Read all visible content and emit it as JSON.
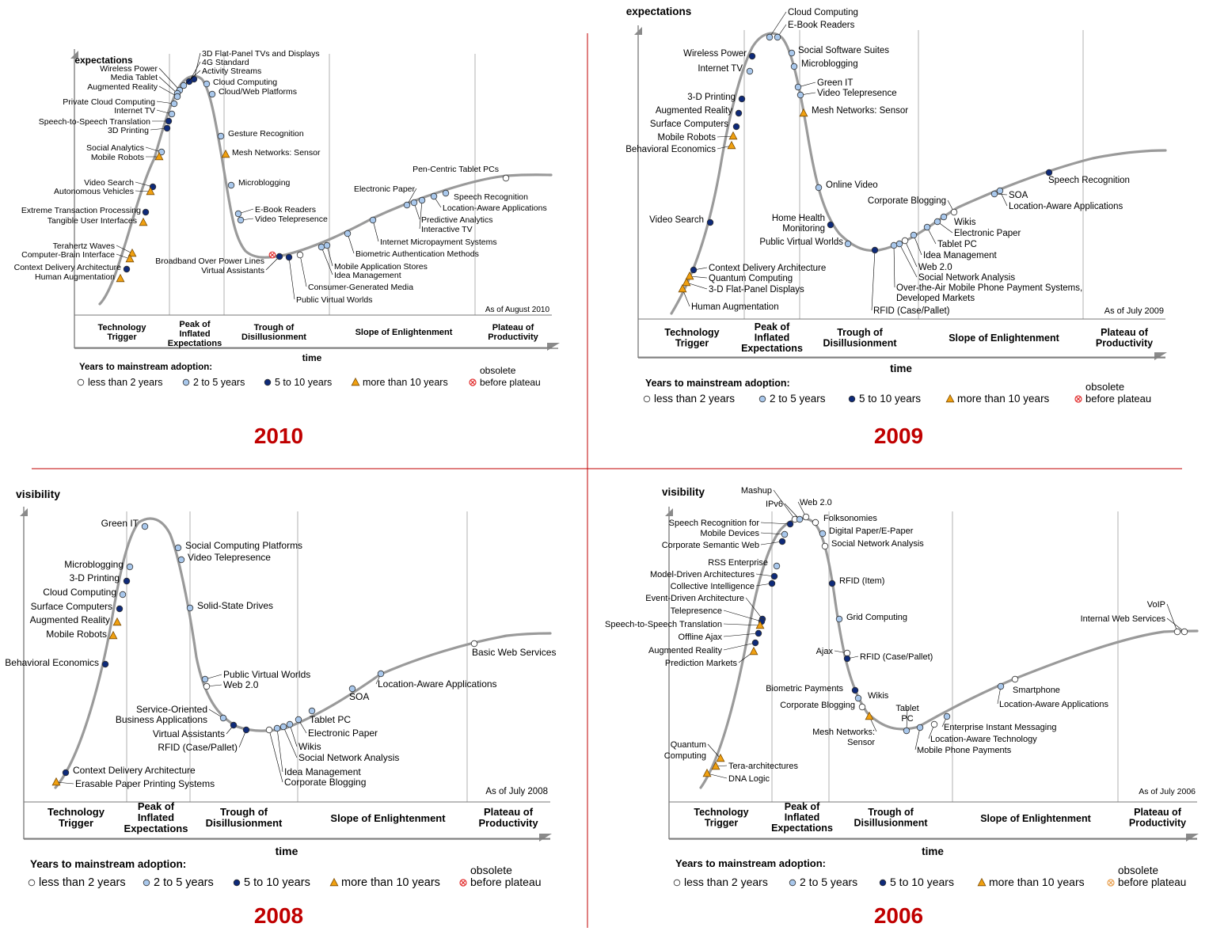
{
  "divider_color": "#c00000",
  "year_color": "#c00000",
  "marker_colors": {
    "lt2": "#ffffff",
    "2to5": "#a9c8ec",
    "5to10": "#0e2a79",
    "gt10": "#f0a010",
    "obsolete": "#e23030"
  },
  "legend_title": "Years to mainstream adoption:",
  "legend": {
    "lt2": "less than 2 years",
    "2to5": "2 to 5 years",
    "5to10": "5 to 10 years",
    "gt10": "more than 10 years",
    "obsolete_1": "obsolete",
    "obsolete_2": "before plateau"
  },
  "phases": [
    "Technology|Trigger",
    "Peak of|Inflated|Expectations",
    "Trough of|Disillusionment",
    "Slope of Enlightenment",
    "Plateau of|Productivity"
  ],
  "x_label": "time",
  "chart_data": [
    {
      "type": "scatter",
      "title": "2010",
      "ylabel": "expectations",
      "xlabel": "time",
      "note": "As of August 2010",
      "series": [
        {
          "name": "less than 2 years",
          "points": [
            "Pen-Centric Tablet PCs",
            "Public Virtual Worlds",
            "Consumer-Generated Media"
          ]
        },
        {
          "name": "2 to 5 years",
          "points": [
            "Wireless Power",
            "Media Tablet",
            "Augmented Reality",
            "Private Cloud Computing",
            "Internet TV",
            "Social Analytics",
            "Cloud Computing",
            "Cloud/Web Platforms",
            "Gesture Recognition",
            "Microblogging",
            "E-Book Readers",
            "Video Telepresence",
            "Mobile Application Stores",
            "Idea Management",
            "Biometric Authentication Methods",
            "Internet Micropayment Systems",
            "Electronic Paper",
            "Predictive Analytics",
            "Interactive TV",
            "Speech Recognition",
            "Location-Aware Applications"
          ]
        },
        {
          "name": "5 to 10 years",
          "points": [
            "3D Flat-Panel TVs and Displays",
            "4G Standard",
            "Activity Streams",
            "Speech-to-Speech Translation",
            "3D Printing",
            "Video Search",
            "Extreme Transaction Processing",
            "Context Delivery Architecture",
            "Broadband Over Power Lines",
            "Virtual Assistants"
          ]
        },
        {
          "name": "more than 10 years",
          "points": [
            "Mobile Robots",
            "Autonomous Vehicles",
            "Tangible User Interfaces",
            "Terahertz Waves",
            "Computer-Brain Interface",
            "Human Augmentation",
            "Mesh Networks: Sensor"
          ]
        },
        {
          "name": "obsolete before plateau",
          "points": [
            "Broadband Over Power Lines"
          ]
        }
      ]
    },
    {
      "type": "scatter",
      "title": "2009",
      "ylabel": "expectations",
      "xlabel": "time",
      "note": "As of July 2009",
      "series": [
        {
          "name": "less than 2 years",
          "points": [
            "Corporate Blogging",
            "Web 2.0"
          ]
        },
        {
          "name": "2 to 5 years",
          "points": [
            "Cloud Computing",
            "E-Book Readers",
            "Internet TV",
            "Social Software Suites",
            "Microblogging",
            "Green IT",
            "Video Telepresence",
            "Online Video",
            "Public Virtual Worlds",
            "Idea Management",
            "Social Network Analysis",
            "Over-the-Air Mobile Phone Payment Systems, Developed Markets",
            "Tablet PC",
            "Electronic Paper",
            "Wikis",
            "SOA",
            "Location-Aware Applications"
          ]
        },
        {
          "name": "5 to 10 years",
          "points": [
            "Wireless Power",
            "3-D Printing",
            "Augmented Reality",
            "Surface Computers",
            "Video Search",
            "Context Delivery Architecture",
            "Home Health Monitoring",
            "RFID (Case/Pallet)",
            "Speech Recognition"
          ]
        },
        {
          "name": "more than 10 years",
          "points": [
            "Mobile Robots",
            "Behavioral Economics",
            "Quantum Computing",
            "3-D Flat-Panel Displays",
            "Human Augmentation",
            "Mesh Networks: Sensor"
          ]
        }
      ]
    },
    {
      "type": "scatter",
      "title": "2008",
      "ylabel": "visibility",
      "xlabel": "time",
      "note": "As of July 2008",
      "series": [
        {
          "name": "less than 2 years",
          "points": [
            "Web 2.0",
            "Corporate Blogging",
            "Basic Web Services"
          ]
        },
        {
          "name": "2 to 5 years",
          "points": [
            "Green IT",
            "Microblogging",
            "Cloud Computing",
            "Social Computing Platforms",
            "Video Telepresence",
            "Solid-State Drives",
            "Public Virtual Worlds",
            "Service-Oriented Business Applications",
            "Idea Management",
            "Wikis",
            "Social Network Analysis",
            "Tablet PC",
            "Electronic Paper",
            "SOA",
            "Location-Aware Applications"
          ]
        },
        {
          "name": "5 to 10 years",
          "points": [
            "3-D Printing",
            "Surface Computers",
            "Behavioral Economics",
            "Context Delivery Architecture",
            "Virtual Assistants",
            "RFID (Case/Pallet)"
          ]
        },
        {
          "name": "more than 10 years",
          "points": [
            "Augmented Reality",
            "Mobile Robots",
            "Erasable Paper Printing Systems"
          ]
        }
      ]
    },
    {
      "type": "scatter",
      "title": "2006",
      "ylabel": "visibility",
      "xlabel": "time",
      "note": "As of July 2006",
      "series": [
        {
          "name": "less than 2 years",
          "points": [
            "Mashup",
            "Web 2.0",
            "Folksonomies",
            "Social Network Analysis",
            "Ajax",
            "Corporate Blogging",
            "Enterprise Instant Messaging",
            "Smartphone",
            "VoIP",
            "Internal Web Services"
          ]
        },
        {
          "name": "2 to 5 years",
          "points": [
            "IPv6",
            "Speech Recognition for Mobile Devices",
            "Digital Paper/E-Paper",
            "RSS Enterprise",
            "Grid Computing",
            "Wikis",
            "Tablet PC",
            "Location-Aware Technology",
            "Mobile Phone Payments",
            "Location-Aware Applications"
          ]
        },
        {
          "name": "5 to 10 years",
          "points": [
            "Corporate Semantic Web",
            "Model-Driven Architectures",
            "Collective Intelligence",
            "Event-Driven Architecture",
            "Telepresence",
            "Offline Ajax",
            "Augmented Reality",
            "RFID (Item)",
            "RFID (Case/Pallet)",
            "Biometric Payments"
          ]
        },
        {
          "name": "more than 10 years",
          "points": [
            "Speech-to-Speech Translation",
            "Prediction Markets",
            "Quantum Computing",
            "Tera-architectures",
            "DNA Logic",
            "Mesh Networks: Sensor"
          ]
        }
      ]
    }
  ]
}
